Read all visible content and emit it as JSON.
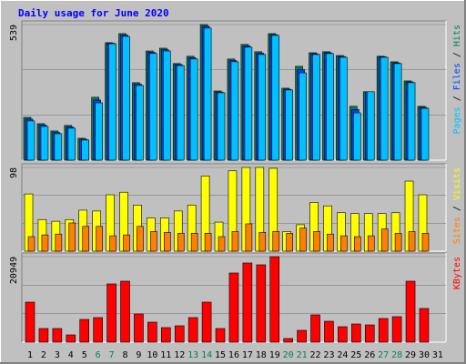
{
  "title": "Daily usage for June 2020",
  "legend_separator": " / ",
  "chart_data": [
    {
      "type": "bar",
      "ylim": [
        0,
        539
      ],
      "yticks": [
        539
      ],
      "series": [
        {
          "name": "Hits",
          "color": "#00805c",
          "values": [
            170,
            145,
            116,
            138,
            87,
            250,
            467,
            503,
            308,
            434,
            445,
            384,
            413,
            539,
            275,
            402,
            460,
            431,
            503,
            286,
            373,
            427,
            431,
            416,
            214,
            272,
            413,
            391,
            315,
            214,
            0
          ]
        },
        {
          "name": "Files",
          "color": "#0040ff",
          "values": [
            163,
            140,
            110,
            132,
            83,
            239,
            465,
            497,
            302,
            429,
            439,
            380,
            407,
            532,
            271,
            396,
            454,
            425,
            499,
            282,
            360,
            423,
            427,
            412,
            201,
            272,
            411,
            387,
            311,
            210,
            0
          ]
        },
        {
          "name": "Pages",
          "color": "#00c0ff",
          "values": [
            156,
            134,
            105,
            127,
            80,
            228,
            463,
            492,
            297,
            424,
            434,
            376,
            402,
            525,
            268,
            391,
            449,
            420,
            496,
            279,
            347,
            420,
            424,
            409,
            188,
            272,
            409,
            384,
            308,
            206,
            0
          ]
        }
      ]
    },
    {
      "type": "bar",
      "ylim": [
        0,
        98
      ],
      "yticks": [
        98
      ],
      "series": [
        {
          "name": "Visits",
          "color": "#ffff00",
          "values": [
            67,
            37,
            35,
            37,
            48,
            47,
            66,
            69,
            54,
            39,
            39,
            47,
            54,
            88,
            34,
            94,
            98,
            98,
            97,
            23,
            31,
            57,
            53,
            45,
            44,
            44,
            44,
            45,
            82,
            66,
            0
          ]
        },
        {
          "name": "Sites",
          "color": "#ff8000",
          "values": [
            17,
            19,
            20,
            33,
            29,
            29,
            18,
            19,
            29,
            23,
            22,
            21,
            21,
            21,
            17,
            23,
            32,
            22,
            23,
            21,
            27,
            23,
            20,
            18,
            17,
            18,
            26,
            21,
            23,
            21,
            0
          ]
        }
      ]
    },
    {
      "type": "bar",
      "ylim": [
        0,
        20949
      ],
      "yticks": [
        20949
      ],
      "categories": [
        "1",
        "2",
        "3",
        "4",
        "5",
        "6",
        "7",
        "8",
        "9",
        "10",
        "11",
        "12",
        "13",
        "14",
        "15",
        "16",
        "17",
        "18",
        "19",
        "20",
        "21",
        "22",
        "23",
        "24",
        "25",
        "26",
        "27",
        "28",
        "29",
        "30",
        "31"
      ],
      "category_colors": [
        "#000000",
        "#000000",
        "#000000",
        "#000000",
        "#000000",
        "#00805c",
        "#00805c",
        "#000000",
        "#000000",
        "#000000",
        "#000000",
        "#000000",
        "#00805c",
        "#00805c",
        "#000000",
        "#000000",
        "#000000",
        "#000000",
        "#000000",
        "#00805c",
        "#00805c",
        "#000000",
        "#000000",
        "#000000",
        "#000000",
        "#000000",
        "#00805c",
        "#00805c",
        "#000000",
        "#000000",
        "#000000"
      ],
      "series": [
        {
          "name": "KBytes",
          "color": "#ff0000",
          "values": [
            9808,
            3344,
            3344,
            1783,
            5572,
            6018,
            14266,
            14935,
            6910,
            4903,
            3566,
            4012,
            6018,
            9808,
            3344,
            16940,
            19392,
            18946,
            20949,
            892,
            2898,
            6687,
            5126,
            3789,
            4458,
            4235,
            5795,
            6241,
            14935,
            8247,
            0
          ]
        }
      ]
    }
  ]
}
